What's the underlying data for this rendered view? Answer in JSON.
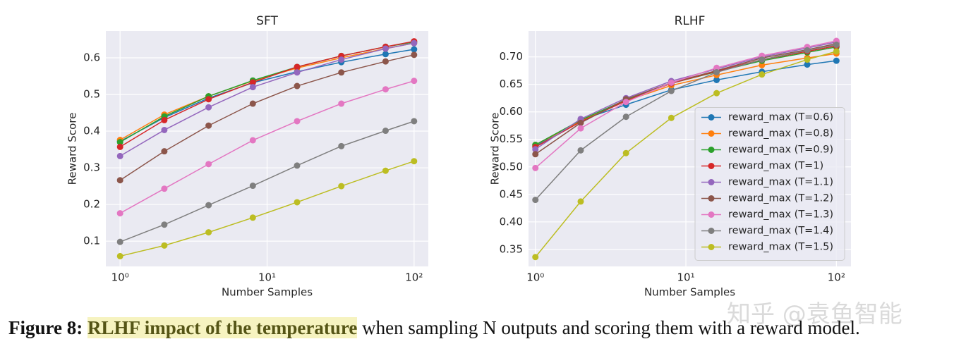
{
  "chart_data": [
    {
      "type": "line",
      "title": "SFT",
      "x_label": "Number Samples",
      "y_label": "Reward Score",
      "x_scale": "log",
      "grid": true,
      "x": [
        1,
        2,
        4,
        8,
        16,
        32,
        64,
        100
      ],
      "xlim": [
        0.8,
        125
      ],
      "xticks": [
        {
          "value": 1,
          "label": "10⁰"
        },
        {
          "value": 10,
          "label": "10¹"
        },
        {
          "value": 100,
          "label": "10²"
        }
      ],
      "ylim": [
        0.031,
        0.673
      ],
      "yticks": [
        0.1,
        0.2,
        0.3,
        0.4,
        0.5,
        0.6
      ],
      "series": [
        {
          "color": "#1f77b4",
          "values": [
            0.372,
            0.437,
            0.49,
            0.532,
            0.562,
            0.588,
            0.61,
            0.623
          ]
        },
        {
          "color": "#ff7f0e",
          "values": [
            0.376,
            0.445,
            0.495,
            0.537,
            0.572,
            0.6,
            0.625,
            0.64
          ]
        },
        {
          "color": "#2ca02c",
          "values": [
            0.37,
            0.44,
            0.495,
            0.538,
            0.575,
            0.605,
            0.63,
            0.643
          ]
        },
        {
          "color": "#d62728",
          "values": [
            0.357,
            0.43,
            0.487,
            0.533,
            0.575,
            0.605,
            0.63,
            0.645
          ]
        },
        {
          "color": "#9467bd",
          "values": [
            0.332,
            0.403,
            0.465,
            0.52,
            0.56,
            0.595,
            0.625,
            0.64
          ]
        },
        {
          "color": "#8c564b",
          "values": [
            0.266,
            0.345,
            0.415,
            0.475,
            0.523,
            0.56,
            0.59,
            0.608
          ]
        },
        {
          "color": "#e377c2",
          "values": [
            0.176,
            0.243,
            0.31,
            0.375,
            0.427,
            0.475,
            0.514,
            0.537
          ]
        },
        {
          "color": "#7f7f7f",
          "values": [
            0.098,
            0.145,
            0.198,
            0.251,
            0.306,
            0.359,
            0.401,
            0.427
          ]
        },
        {
          "color": "#bcbd22",
          "values": [
            0.059,
            0.088,
            0.124,
            0.164,
            0.206,
            0.25,
            0.292,
            0.318
          ]
        }
      ]
    },
    {
      "type": "line",
      "title": "RLHF",
      "x_label": "Number Samples",
      "y_label": "Reward Score",
      "x_scale": "log",
      "grid": true,
      "legend": "center right",
      "x": [
        1,
        2,
        4,
        8,
        16,
        32,
        64,
        100
      ],
      "xlim": [
        0.9,
        125
      ],
      "xticks": [
        {
          "value": 1,
          "label": "10⁰"
        },
        {
          "value": 10,
          "label": "10¹"
        },
        {
          "value": 100,
          "label": "10²"
        }
      ],
      "ylim": [
        0.319,
        0.747
      ],
      "yticks": [
        {
          "value": 0.35,
          "label": "0.35"
        },
        {
          "value": 0.4,
          "label": "0.40"
        },
        {
          "value": 0.45,
          "label": "0.45"
        },
        {
          "value": 0.5,
          "label": "0.50"
        },
        {
          "value": 0.55,
          "label": "0.55"
        },
        {
          "value": 0.6,
          "label": "0.60"
        },
        {
          "value": 0.65,
          "label": "0.65"
        },
        {
          "value": 0.7,
          "label": "0.70"
        }
      ],
      "series": [
        {
          "name": "reward_max (T=0.6)",
          "color": "#1f77b4",
          "values": [
            0.538,
            0.585,
            0.613,
            0.64,
            0.658,
            0.673,
            0.686,
            0.693
          ]
        },
        {
          "name": "reward_max (T=0.8)",
          "color": "#ff7f0e",
          "values": [
            0.54,
            0.583,
            0.62,
            0.648,
            0.667,
            0.685,
            0.698,
            0.706
          ]
        },
        {
          "name": "reward_max (T=0.9)",
          "color": "#2ca02c",
          "values": [
            0.54,
            0.585,
            0.622,
            0.652,
            0.673,
            0.693,
            0.708,
            0.718
          ]
        },
        {
          "name": "reward_max (T=1)",
          "color": "#d62728",
          "values": [
            0.536,
            0.582,
            0.62,
            0.652,
            0.674,
            0.695,
            0.71,
            0.72
          ]
        },
        {
          "name": "reward_max (T=1.1)",
          "color": "#9467bd",
          "values": [
            0.532,
            0.587,
            0.625,
            0.656,
            0.678,
            0.7,
            0.716,
            0.727
          ]
        },
        {
          "name": "reward_max (T=1.2)",
          "color": "#8c564b",
          "values": [
            0.523,
            0.58,
            0.623,
            0.653,
            0.675,
            0.698,
            0.713,
            0.724
          ]
        },
        {
          "name": "reward_max (T=1.3)",
          "color": "#e377c2",
          "values": [
            0.498,
            0.57,
            0.618,
            0.653,
            0.68,
            0.702,
            0.718,
            0.729
          ]
        },
        {
          "name": "reward_max (T=1.4)",
          "color": "#7f7f7f",
          "values": [
            0.44,
            0.53,
            0.591,
            0.638,
            0.672,
            0.695,
            0.712,
            0.722
          ]
        },
        {
          "name": "reward_max (T=1.5)",
          "color": "#bcbd22",
          "values": [
            0.336,
            0.437,
            0.525,
            0.589,
            0.634,
            0.668,
            0.695,
            0.71
          ]
        }
      ]
    }
  ],
  "caption": {
    "label": "Figure 8:",
    "highlight": "RLHF impact of the temperature",
    "text": "when sampling N outputs and scoring them with a reward model."
  },
  "watermark": "知乎 @袁鱼智能"
}
